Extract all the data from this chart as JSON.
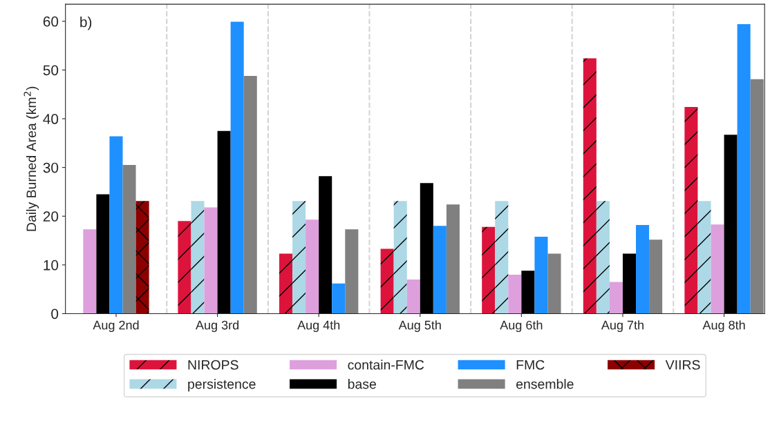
{
  "chart_data": {
    "type": "bar",
    "ylabel": "Daily Burned Area (km$^{2}$)",
    "categories": [
      "Aug 2nd",
      "Aug 3rd",
      "Aug 4th",
      "Aug 5th",
      "Aug 6th",
      "Aug 7th",
      "Aug 8th"
    ],
    "series": [
      {
        "name": "NIROPS",
        "color": "#dc143c",
        "values": [
          null,
          19.0,
          12.3,
          13.3,
          17.8,
          52.4,
          42.4
        ]
      },
      {
        "name": "persistence",
        "color": "#add8e6",
        "values": [
          null,
          23.1,
          23.1,
          23.1,
          23.1,
          23.1,
          23.1
        ]
      },
      {
        "name": "contain-FMC",
        "color": "#dda0dd",
        "values": [
          17.3,
          21.8,
          19.3,
          7.0,
          8.0,
          6.5,
          18.3
        ]
      },
      {
        "name": "base",
        "color": "#000000",
        "values": [
          24.5,
          37.5,
          28.2,
          26.8,
          8.8,
          12.3,
          36.7
        ]
      },
      {
        "name": "FMC",
        "color": "#1e90ff",
        "values": [
          36.4,
          59.9,
          6.2,
          18.0,
          15.8,
          18.2,
          59.4
        ]
      },
      {
        "name": "ensemble",
        "color": "#808080",
        "values": [
          30.5,
          48.8,
          17.3,
          22.4,
          12.3,
          15.2,
          48.1
        ]
      },
      {
        "name": "VIIRS",
        "color": "#8b0000",
        "values": [
          23.1,
          null,
          null,
          null,
          null,
          null,
          null
        ]
      }
    ],
    "ylim": [
      0,
      63.5
    ],
    "yticks": [
      0,
      10,
      20,
      30,
      40,
      50,
      60
    ],
    "annotations": [
      "b)"
    ],
    "grid": false,
    "legend": "bottom"
  }
}
